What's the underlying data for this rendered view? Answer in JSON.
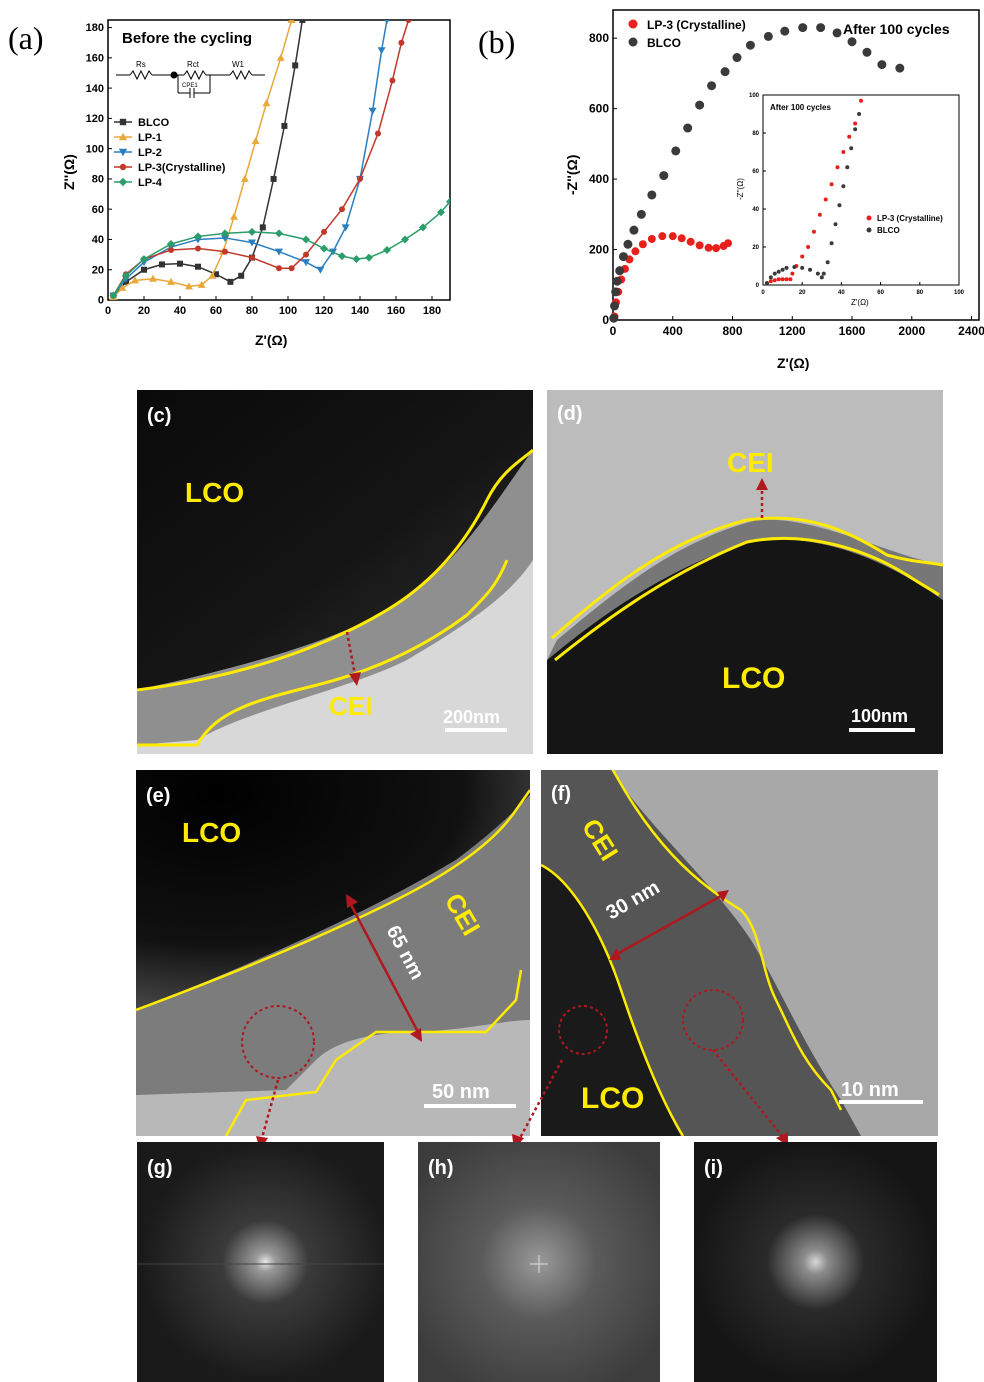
{
  "figure": {
    "panel_labels": {
      "a": "(a)",
      "b": "(b)",
      "c": "(c)",
      "d": "(d)",
      "e": "(e)",
      "f": "(f)",
      "g": "(g)",
      "h": "(h)",
      "i": "(i)"
    },
    "text": {
      "lco": "LCO",
      "cei": "CEI",
      "scale_c": "200nm",
      "scale_d": "100nm",
      "scale_e": "50 nm",
      "scale_f": "10 nm",
      "thick_e": "65 nm",
      "thick_f": "30 nm",
      "circuit": {
        "rs": "Rs",
        "rct": "Rct",
        "w1": "W1",
        "cpe": "CPE1"
      }
    },
    "colors": {
      "yellow": "#ffeb00",
      "arrow": "#b0171f",
      "BLCO": "#333333",
      "LP-1": "#e8a83a",
      "LP-2": "#2a7fc0",
      "LP-3": "#c0392b",
      "LP-4": "#2a9d6a",
      "lp3b": "#e8201c"
    }
  },
  "chart_data": [
    {
      "id": "a",
      "type": "line",
      "title": "Before the cycling",
      "xlabel": "Z'(Ω)",
      "ylabel": "Z''(Ω)",
      "xlim": [
        0,
        190
      ],
      "ylim": [
        0,
        185
      ],
      "xticks": [
        0,
        20,
        40,
        60,
        80,
        100,
        120,
        140,
        160,
        180
      ],
      "yticks": [
        0,
        20,
        40,
        60,
        80,
        100,
        120,
        140,
        160,
        180
      ],
      "legend": "left",
      "series": [
        {
          "name": "BLCO",
          "marker": "square",
          "points": [
            [
              3,
              2
            ],
            [
              10,
              12
            ],
            [
              20,
              20
            ],
            [
              30,
              23.5
            ],
            [
              40,
              24
            ],
            [
              50,
              22
            ],
            [
              60,
              17
            ],
            [
              68,
              12
            ],
            [
              74,
              16
            ],
            [
              80,
              28
            ],
            [
              86,
              48
            ],
            [
              92,
              80
            ],
            [
              98,
              115
            ],
            [
              104,
              155
            ],
            [
              108,
              185
            ]
          ]
        },
        {
          "name": "LP-1",
          "marker": "triangle-up",
          "points": [
            [
              3,
              2
            ],
            [
              8,
              8
            ],
            [
              15,
              13
            ],
            [
              25,
              14
            ],
            [
              35,
              12
            ],
            [
              45,
              9
            ],
            [
              52,
              10
            ],
            [
              58,
              16
            ],
            [
              64,
              32
            ],
            [
              70,
              55
            ],
            [
              76,
              80
            ],
            [
              82,
              105
            ],
            [
              88,
              130
            ],
            [
              96,
              160
            ],
            [
              102,
              185
            ]
          ]
        },
        {
          "name": "LP-2",
          "marker": "triangle-down",
          "points": [
            [
              3,
              3
            ],
            [
              10,
              14
            ],
            [
              20,
              25
            ],
            [
              35,
              35
            ],
            [
              50,
              40
            ],
            [
              65,
              41
            ],
            [
              80,
              38
            ],
            [
              95,
              32
            ],
            [
              110,
              25
            ],
            [
              118,
              20
            ],
            [
              125,
              32
            ],
            [
              132,
              48
            ],
            [
              140,
              80
            ],
            [
              147,
              125
            ],
            [
              152,
              165
            ],
            [
              155,
              185
            ]
          ]
        },
        {
          "name": "LP-3(Crystalline)",
          "marker": "circle",
          "points": [
            [
              3,
              3
            ],
            [
              10,
              17
            ],
            [
              20,
              27
            ],
            [
              35,
              33
            ],
            [
              50,
              34
            ],
            [
              65,
              32
            ],
            [
              80,
              28
            ],
            [
              95,
              21
            ],
            [
              102,
              21
            ],
            [
              110,
              30
            ],
            [
              120,
              45
            ],
            [
              130,
              60
            ],
            [
              140,
              80
            ],
            [
              150,
              110
            ],
            [
              158,
              145
            ],
            [
              163,
              170
            ],
            [
              167,
              185
            ]
          ]
        },
        {
          "name": "LP-4",
          "marker": "diamond",
          "points": [
            [
              3,
              3
            ],
            [
              10,
              16
            ],
            [
              20,
              27
            ],
            [
              35,
              37
            ],
            [
              50,
              42
            ],
            [
              65,
              44
            ],
            [
              80,
              45
            ],
            [
              95,
              44
            ],
            [
              110,
              40
            ],
            [
              120,
              34
            ],
            [
              130,
              29
            ],
            [
              138,
              27
            ],
            [
              145,
              28
            ],
            [
              155,
              33
            ],
            [
              165,
              40
            ],
            [
              175,
              48
            ],
            [
              185,
              58
            ],
            [
              190,
              65
            ]
          ]
        }
      ]
    },
    {
      "id": "b",
      "type": "scatter",
      "title": "After 100 cycles",
      "xlabel": "Z'(Ω)",
      "ylabel": "-Z''(Ω)",
      "xlim": [
        0,
        2450
      ],
      "ylim": [
        0,
        880
      ],
      "xticks": [
        0,
        400,
        800,
        1200,
        1600,
        2000,
        2400
      ],
      "yticks": [
        0,
        200,
        400,
        600,
        800
      ],
      "legend": "top-left",
      "series": [
        {
          "name": "LP-3 (Crystalline)",
          "points": [
            [
              10,
              10
            ],
            [
              20,
              50
            ],
            [
              35,
              80
            ],
            [
              55,
              115
            ],
            [
              80,
              145
            ],
            [
              110,
              172
            ],
            [
              150,
              195
            ],
            [
              200,
              215
            ],
            [
              260,
              230
            ],
            [
              330,
              238
            ],
            [
              400,
              238
            ],
            [
              460,
              232
            ],
            [
              520,
              222
            ],
            [
              580,
              212
            ],
            [
              640,
              205
            ],
            [
              690,
              204
            ],
            [
              740,
              210
            ],
            [
              770,
              218
            ]
          ]
        },
        {
          "name": "BLCO",
          "points": [
            [
              5,
              5
            ],
            [
              10,
              40
            ],
            [
              18,
              80
            ],
            [
              28,
              110
            ],
            [
              45,
              140
            ],
            [
              70,
              180
            ],
            [
              100,
              215
            ],
            [
              140,
              255
            ],
            [
              190,
              300
            ],
            [
              260,
              355
            ],
            [
              340,
              410
            ],
            [
              420,
              480
            ],
            [
              500,
              545
            ],
            [
              580,
              610
            ],
            [
              660,
              665
            ],
            [
              750,
              705
            ],
            [
              830,
              745
            ],
            [
              920,
              780
            ],
            [
              1040,
              805
            ],
            [
              1150,
              820
            ],
            [
              1270,
              830
            ],
            [
              1390,
              830
            ],
            [
              1500,
              815
            ],
            [
              1600,
              790
            ],
            [
              1700,
              760
            ],
            [
              1800,
              725
            ],
            [
              1920,
              715
            ]
          ]
        }
      ]
    },
    {
      "id": "b-inset",
      "type": "scatter",
      "title": "After 100 cycles",
      "xlabel": "Z'(Ω)",
      "ylabel": "-Z''(Ω)",
      "xlim": [
        0,
        100
      ],
      "ylim": [
        0,
        100
      ],
      "xticks": [
        0,
        20,
        40,
        60,
        80,
        100
      ],
      "yticks": [
        0,
        20,
        40,
        60,
        80,
        100
      ],
      "legend": "bottom-right",
      "series": [
        {
          "name": "LP-3 (Crystalline)",
          "points": [
            [
              2,
              1
            ],
            [
              4,
              2
            ],
            [
              6,
              2.5
            ],
            [
              8,
              3
            ],
            [
              10,
              3
            ],
            [
              12,
              3
            ],
            [
              14,
              3
            ],
            [
              15,
              6
            ],
            [
              17,
              10
            ],
            [
              20,
              15
            ],
            [
              23,
              20
            ],
            [
              26,
              28
            ],
            [
              29,
              37
            ],
            [
              32,
              45
            ],
            [
              35,
              53
            ],
            [
              38,
              62
            ],
            [
              41,
              70
            ],
            [
              44,
              78
            ],
            [
              47,
              85
            ],
            [
              50,
              97
            ]
          ]
        },
        {
          "name": "BLCO",
          "points": [
            [
              2,
              1
            ],
            [
              4,
              4
            ],
            [
              6,
              6
            ],
            [
              8,
              7
            ],
            [
              10,
              8
            ],
            [
              12,
              9
            ],
            [
              16,
              9.5
            ],
            [
              20,
              9
            ],
            [
              24,
              8
            ],
            [
              28,
              6
            ],
            [
              30,
              4
            ],
            [
              31,
              6
            ],
            [
              33,
              12
            ],
            [
              35,
              22
            ],
            [
              37,
              32
            ],
            [
              39,
              42
            ],
            [
              41,
              52
            ],
            [
              43,
              62
            ],
            [
              45,
              72
            ],
            [
              47,
              82
            ],
            [
              49,
              90
            ]
          ]
        }
      ]
    }
  ]
}
